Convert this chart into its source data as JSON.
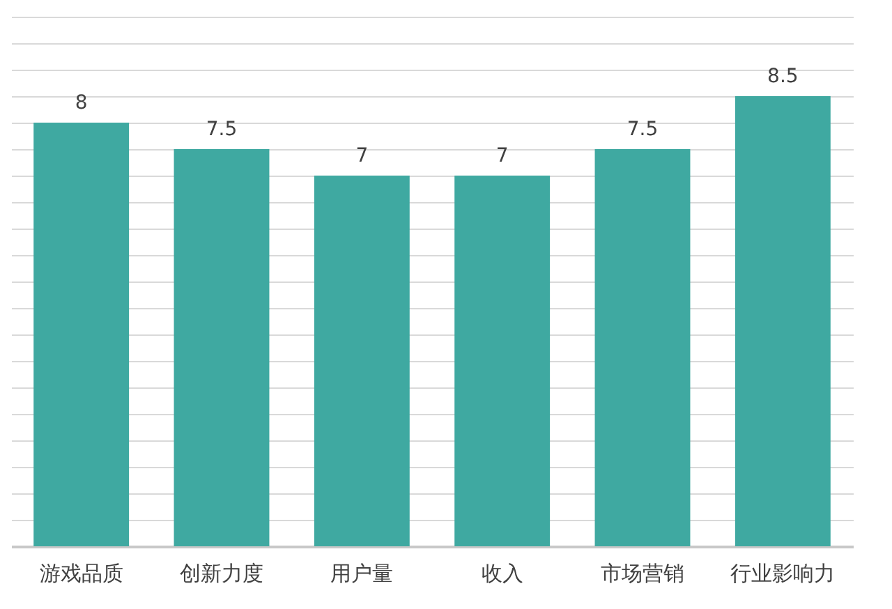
{
  "chart_data": {
    "type": "bar",
    "categories": [
      "游戏品质",
      "创新力度",
      "用户量",
      "收入",
      "市场营销",
      "行业影响力"
    ],
    "values": [
      8,
      7.5,
      7,
      7,
      7.5,
      8.5
    ],
    "color": "#3fa9a1",
    "ylim": [
      0,
      10
    ],
    "yticks": [
      {
        "value": 0,
        "label": null
      },
      {
        "value": 0.5,
        "label": null
      },
      {
        "value": 1,
        "label": null
      },
      {
        "value": 1.5,
        "label": null
      },
      {
        "value": 2,
        "label": null
      },
      {
        "value": 2.5,
        "label": null
      },
      {
        "value": 3,
        "label": null
      },
      {
        "value": 3.5,
        "label": null
      },
      {
        "value": 4,
        "label": null
      },
      {
        "value": 4.5,
        "label": null
      },
      {
        "value": 5,
        "label": null
      },
      {
        "value": 5.5,
        "label": null
      },
      {
        "value": 6,
        "label": null
      },
      {
        "value": 6.5,
        "label": null
      },
      {
        "value": 7,
        "label": null
      },
      {
        "value": 7.5,
        "label": null
      },
      {
        "value": 8,
        "label": null
      },
      {
        "value": 8.5,
        "label": null
      },
      {
        "value": 9,
        "label": null
      },
      {
        "value": 9.5,
        "label": null
      },
      {
        "value": 10,
        "label": null
      }
    ],
    "grid": "y",
    "tick_labels": "x",
    "data_labels": true
  }
}
